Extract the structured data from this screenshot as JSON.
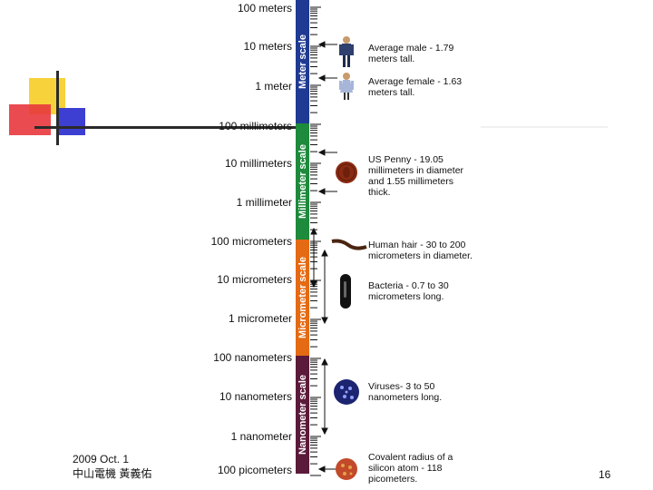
{
  "scale_labels": [
    "100 meters",
    "10 meters",
    "1 meter",
    "100 millimeters",
    "10 millimeters",
    "1 millimeter",
    "100 micrometers",
    "10 micrometers",
    "1 micrometer",
    "100 nanometers",
    "10 nanometers",
    "1 nanometer",
    "100 picometers"
  ],
  "segments": [
    {
      "label": "Meter scale",
      "color": "#1f3a93"
    },
    {
      "label": "Millimeter scale",
      "color": "#1d8a3c"
    },
    {
      "label": "Micrometer scale",
      "color": "#e46a13"
    },
    {
      "label": "Nanometer scale",
      "color": "#5c1a3a"
    }
  ],
  "descriptions": {
    "male": "Average male - 1.79 meters tall.",
    "female": "Average female - 1.63 meters tall.",
    "penny": "US Penny - 19.05 millimeters in diameter and 1.55 millimeters thick.",
    "hair": "Human hair - 30 to 200 micrometers in diameter.",
    "bacteria": "Bacteria - 0.7 to 30 micrometers long.",
    "viruses": "Viruses- 3 to 50 nanometers long.",
    "silicon": "Covalent radius of a silicon atom - 118 picometers."
  },
  "footer": {
    "date": "2009 Oct. 1",
    "author": "中山電機 黃義佑"
  },
  "page_number": "16"
}
